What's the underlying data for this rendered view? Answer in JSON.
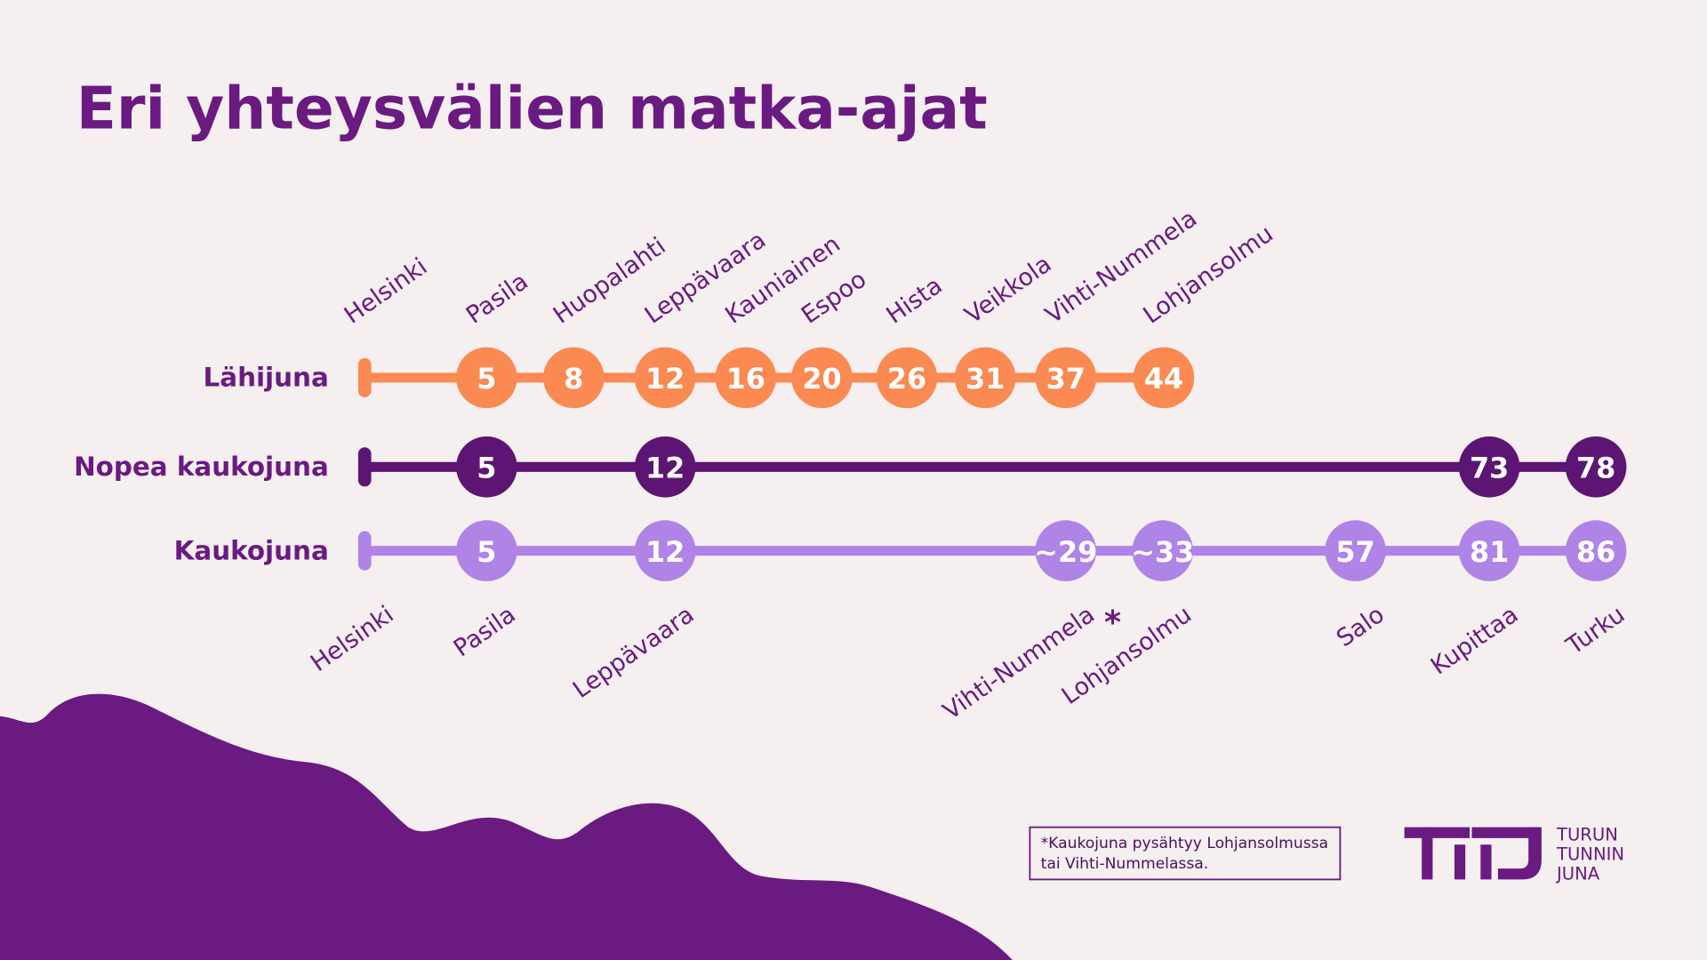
{
  "title": "Eri yhteysvälien matka-ajat",
  "lines": [
    {
      "name": "Lähijuna",
      "color": "#fa8a52",
      "stops": [
        5,
        8,
        12,
        16,
        20,
        26,
        31,
        37,
        44
      ]
    },
    {
      "name": "Nopea kaukojuna",
      "color": "#5c1572",
      "stops": [
        5,
        12,
        73,
        78
      ]
    },
    {
      "name": "Kaukojuna",
      "color": "#b083e6",
      "stops": [
        5,
        12,
        "~29",
        "~33",
        57,
        81,
        86
      ]
    }
  ],
  "top_stations": [
    "Helsinki",
    "Pasila",
    "Huopalahti",
    "Leppävaara",
    "Kauniainen",
    "Espoo",
    "Hista",
    "Veikkola",
    "Vihti-Nummela",
    "Lohjansolmu"
  ],
  "bottom_stations": [
    "Helsinki",
    "Pasila",
    "Leppävaara",
    "Vihti-Nummela",
    "Lohjansolmu",
    "Salo",
    "Kupittaa",
    "Turku"
  ],
  "asterisk": "*",
  "footnote": [
    "*Kaukojuna pysähtyy Lohjansolmussa",
    "tai Vihti-Nummelassa."
  ],
  "logo": [
    "TURUN",
    "TUNNIN",
    "JUNA"
  ]
}
